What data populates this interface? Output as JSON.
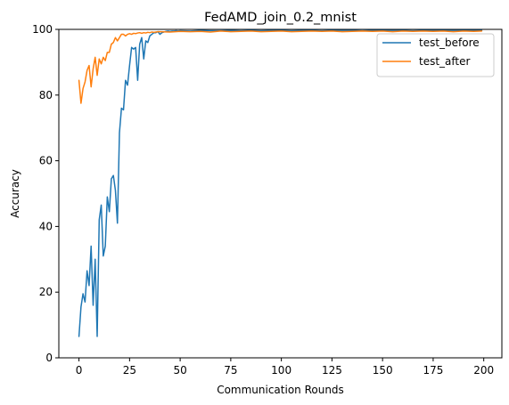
{
  "chart_data": {
    "type": "line",
    "title": "FedAMD_join_0.2_mnist",
    "xlabel": "Communication Rounds",
    "ylabel": "Accuracy",
    "xlim": [
      -9.95,
      208.95
    ],
    "ylim": [
      0,
      100
    ],
    "xticks": [
      0,
      25,
      50,
      75,
      100,
      125,
      150,
      175,
      200
    ],
    "yticks": [
      0,
      20,
      40,
      60,
      80,
      100
    ],
    "grid": false,
    "legend_position": "top-right",
    "series": [
      {
        "name": "test_before",
        "color": "#1f77b4",
        "x": [
          0,
          1,
          2,
          3,
          4,
          5,
          6,
          7,
          8,
          9,
          10,
          11,
          12,
          13,
          14,
          15,
          16,
          17,
          18,
          19,
          20,
          21,
          22,
          23,
          24,
          25,
          26,
          27,
          28,
          29,
          30,
          31,
          32,
          33,
          34,
          35,
          36,
          37,
          38,
          39,
          40,
          41,
          42,
          43,
          44,
          45,
          46,
          47,
          48,
          49,
          50,
          55,
          60,
          65,
          70,
          75,
          80,
          85,
          90,
          95,
          100,
          105,
          110,
          115,
          120,
          125,
          130,
          135,
          140,
          145,
          150,
          155,
          160,
          165,
          170,
          175,
          180,
          185,
          190,
          195,
          199
        ],
        "y": [
          6.5,
          15.5,
          19.5,
          17,
          26.5,
          22,
          34,
          16,
          30,
          6.5,
          42,
          46.5,
          31,
          34,
          49,
          44.5,
          54.5,
          55.5,
          51,
          41,
          68.5,
          76,
          75.5,
          84.5,
          83,
          89,
          94.5,
          94,
          94.5,
          84.5,
          95.5,
          97.5,
          91,
          96.5,
          96,
          98,
          98.5,
          99,
          99,
          99.3,
          98.5,
          99,
          99.2,
          99.4,
          99.5,
          99.4,
          99.5,
          99.5,
          99.6,
          99.5,
          99.6,
          99.5,
          99.7,
          99.6,
          99.6,
          99.7,
          99.6,
          99.7,
          99.6,
          99.7,
          99.7,
          99.6,
          99.7,
          99.7,
          99.6,
          99.7,
          99.7,
          99.7,
          99.6,
          99.7,
          99.7,
          99.7,
          99.7,
          99.6,
          99.7,
          99.7,
          99.7,
          99.7,
          99.7,
          99.7,
          99.7
        ]
      },
      {
        "name": "test_after",
        "color": "#ff7f0e",
        "x": [
          0,
          1,
          2,
          3,
          4,
          5,
          6,
          7,
          8,
          9,
          10,
          11,
          12,
          13,
          14,
          15,
          16,
          17,
          18,
          19,
          20,
          21,
          22,
          23,
          24,
          25,
          26,
          27,
          28,
          29,
          30,
          31,
          32,
          33,
          34,
          35,
          36,
          37,
          38,
          39,
          40,
          45,
          50,
          55,
          60,
          65,
          70,
          75,
          80,
          85,
          90,
          95,
          100,
          105,
          110,
          115,
          120,
          125,
          130,
          135,
          140,
          145,
          150,
          155,
          160,
          165,
          170,
          175,
          180,
          185,
          190,
          195,
          199
        ],
        "y": [
          84.5,
          77.5,
          82,
          84,
          87.5,
          89,
          82.5,
          88,
          91.5,
          86,
          91,
          89.5,
          91.5,
          90.5,
          93,
          93,
          95.5,
          96,
          97.5,
          96.5,
          97.5,
          98.5,
          98.5,
          98,
          98.5,
          98.7,
          98.5,
          98.8,
          98.7,
          98.9,
          99,
          98.8,
          99,
          98.9,
          99.1,
          99,
          99.2,
          99.1,
          99.2,
          99.3,
          99.3,
          99.2,
          99.4,
          99.3,
          99.4,
          99.2,
          99.5,
          99.3,
          99.4,
          99.5,
          99.3,
          99.4,
          99.5,
          99.3,
          99.4,
          99.5,
          99.4,
          99.5,
          99.3,
          99.4,
          99.5,
          99.4,
          99.5,
          99.3,
          99.5,
          99.4,
          99.5,
          99.4,
          99.5,
          99.3,
          99.5,
          99.4,
          99.5
        ]
      }
    ]
  }
}
